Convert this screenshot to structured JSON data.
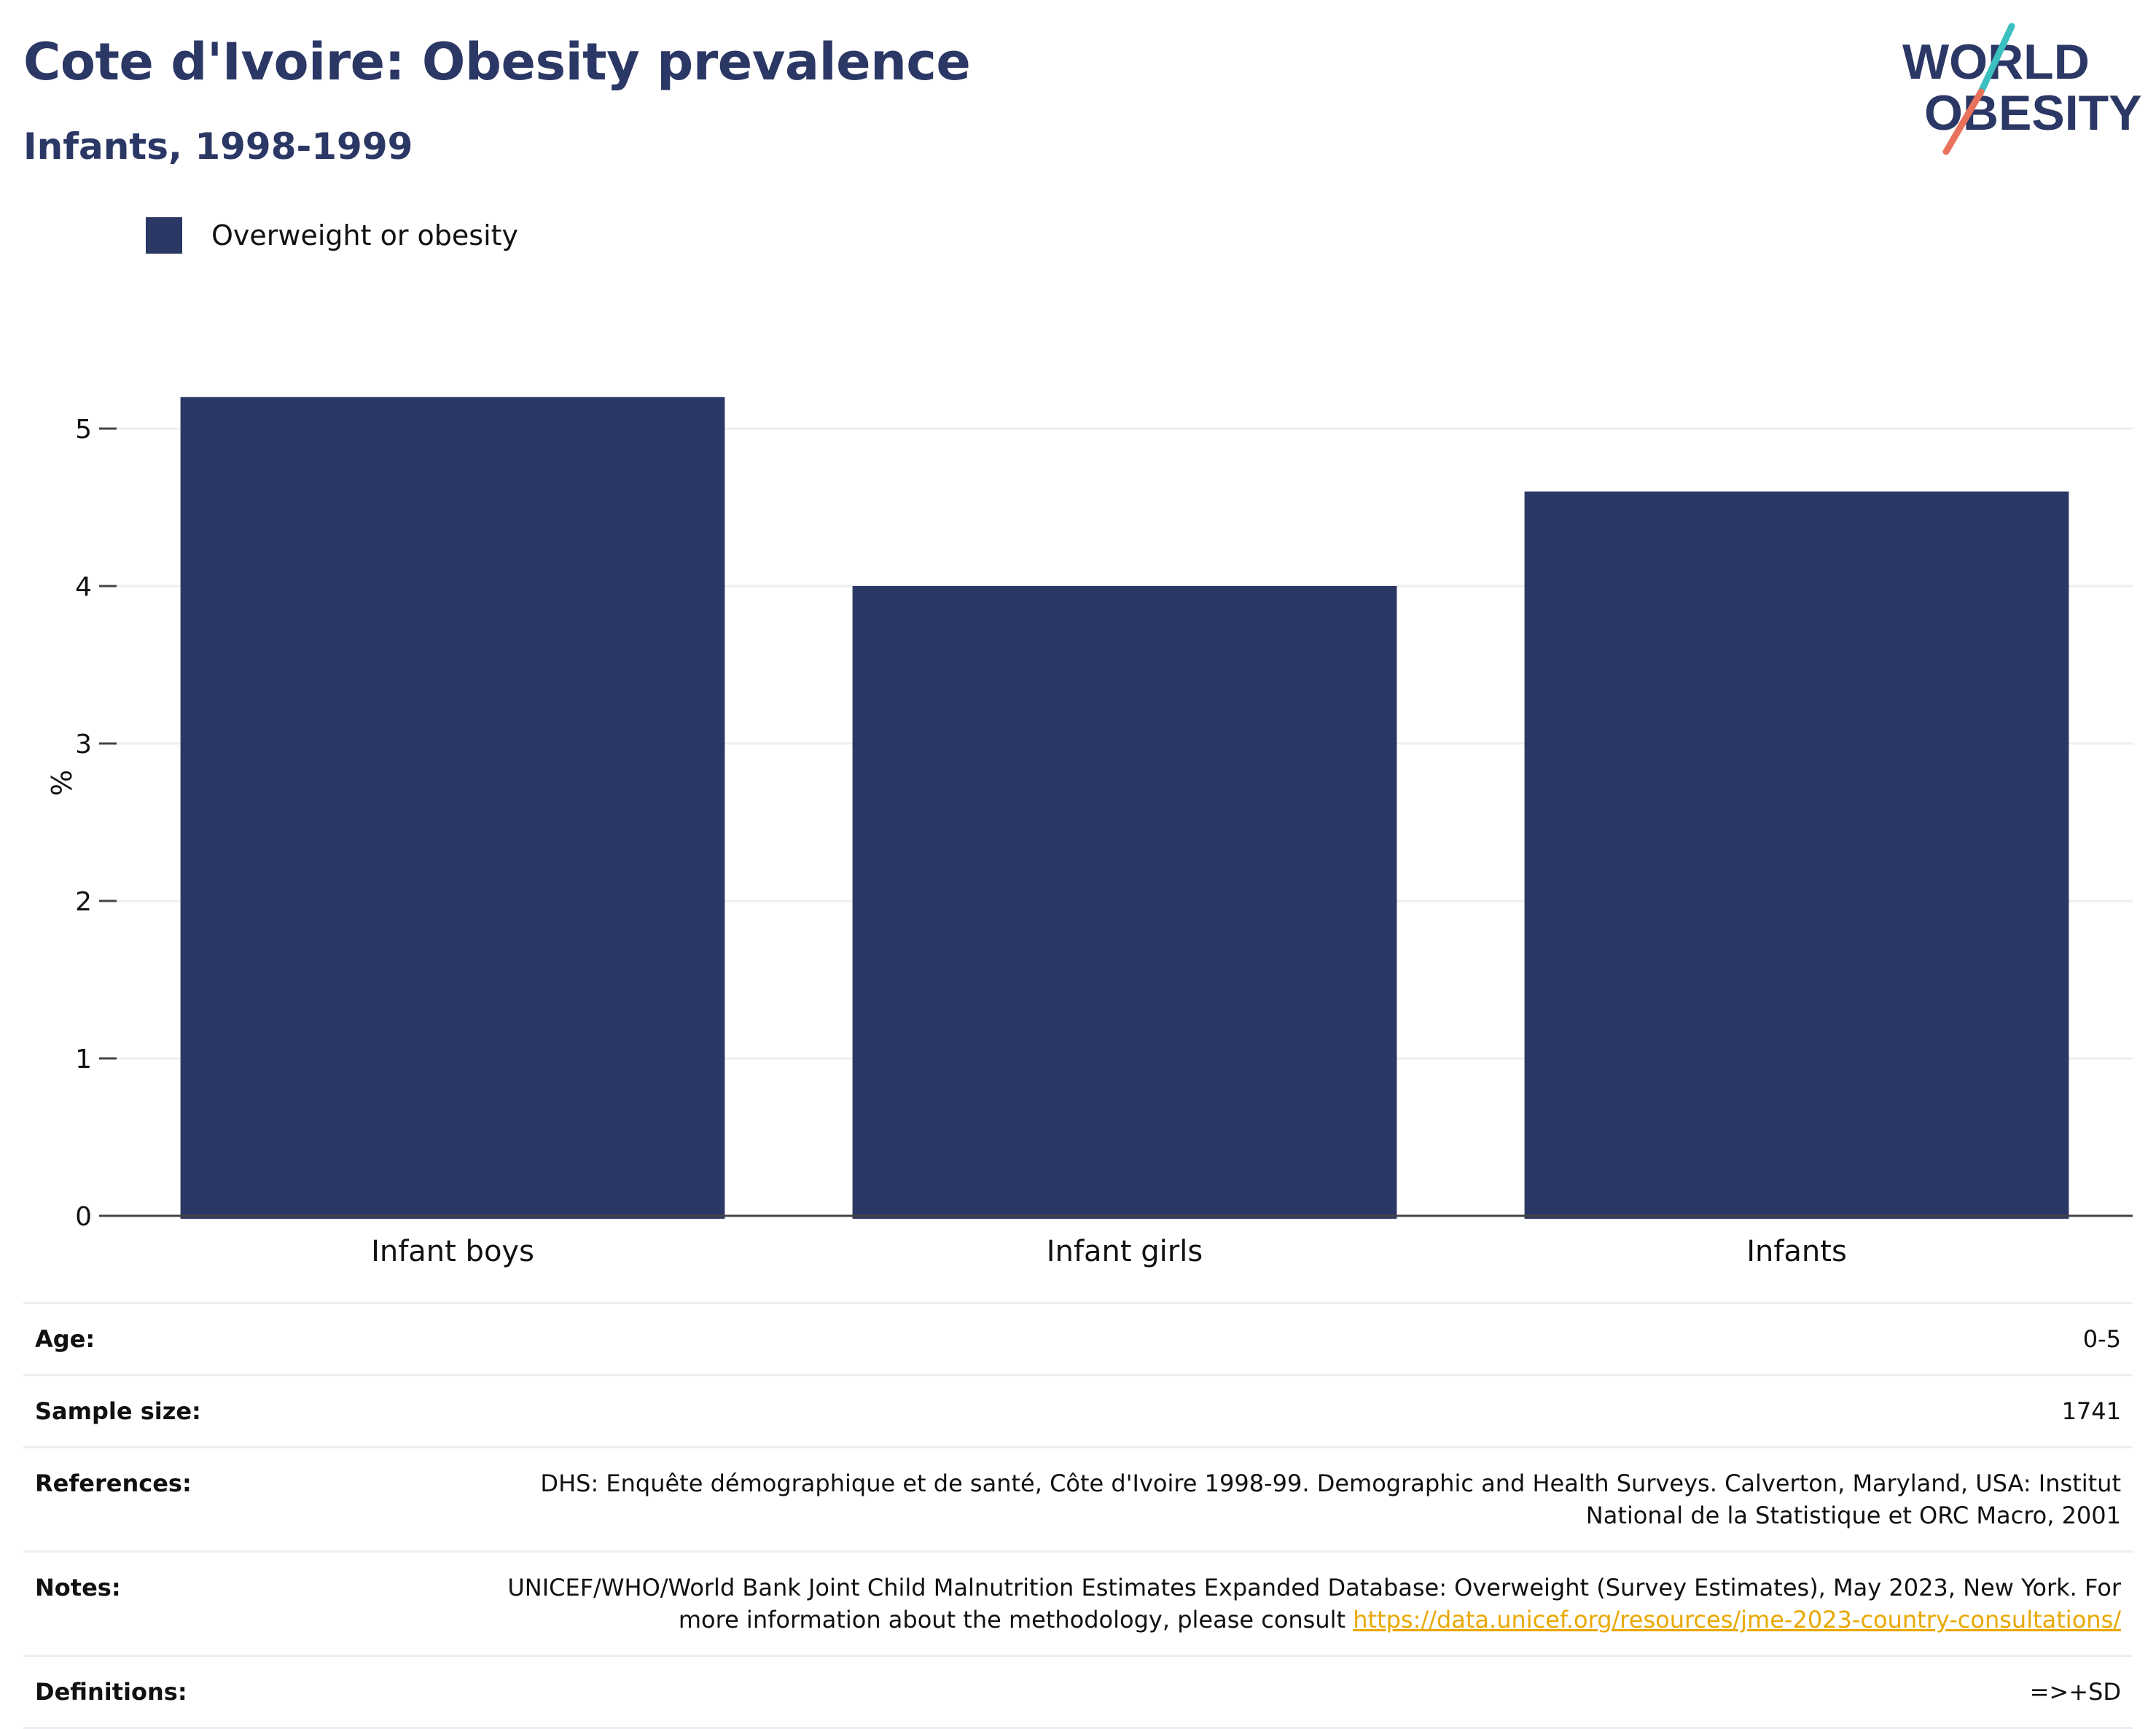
{
  "header": {
    "title": "Cote d'Ivoire: Obesity prevalence",
    "subtitle": "Infants, 1998-1999"
  },
  "logo": {
    "line1": "WORLD",
    "line2": "OBESITY",
    "accent_teal": "#3bbfbf",
    "accent_coral": "#e8725c"
  },
  "colors": {
    "bar": "#2b3764",
    "text_dark": "#2b3764"
  },
  "chart_data": {
    "type": "bar",
    "categories": [
      "Infant boys",
      "Infant girls",
      "Infants"
    ],
    "series": [
      {
        "name": "Overweight or obesity",
        "values": [
          5.2,
          4.0,
          4.6
        ]
      }
    ],
    "title": "Cote d'Ivoire: Obesity prevalence",
    "subtitle": "Infants, 1998-1999",
    "xlabel": "",
    "ylabel": "%",
    "ylim": [
      0,
      5.5
    ],
    "yticks": [
      0,
      1,
      2,
      3,
      4,
      5
    ],
    "grid": true,
    "legend": "top-left"
  },
  "meta": {
    "age_label": "Age:",
    "age_value": "0-5",
    "sample_label": "Sample size:",
    "sample_value": "1741",
    "references_label": "References:",
    "references_value": "DHS: Enquête démographique et de santé, Côte d'Ivoire 1998-99. Demographic and Health Surveys. Calverton, Maryland, USA: Institut National de la Statistique et ORC Macro, 2001",
    "notes_label": "Notes:",
    "notes_text": "UNICEF/WHO/World Bank Joint Child Malnutrition Estimates Expanded Database: Overweight (Survey Estimates), May 2023, New York. For more information about the methodology, please consult ",
    "notes_link": "https://data.unicef.org/resources/jme-2023-country-consultations/",
    "definitions_label": "Definitions:",
    "definitions_value": "=>+SD"
  }
}
